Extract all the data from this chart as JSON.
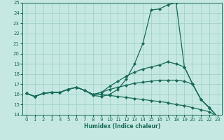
{
  "xlabel": "Humidex (Indice chaleur)",
  "ylabel": "",
  "xlim": [
    -0.5,
    23.5
  ],
  "ylim": [
    14,
    25
  ],
  "xticks": [
    0,
    1,
    2,
    3,
    4,
    5,
    6,
    7,
    8,
    9,
    10,
    11,
    12,
    13,
    14,
    15,
    16,
    17,
    18,
    19,
    20,
    21,
    22,
    23
  ],
  "yticks": [
    14,
    15,
    16,
    17,
    18,
    19,
    20,
    21,
    22,
    23,
    24,
    25
  ],
  "bg_color": "#c5e8e2",
  "grid_color": "#9ecec6",
  "line_color": "#1a6b5a",
  "lines": [
    [
      16.1,
      15.8,
      16.1,
      16.2,
      16.2,
      16.5,
      16.7,
      16.4,
      15.9,
      15.8,
      16.0,
      16.5,
      17.5,
      19.0,
      21.0,
      24.3,
      24.4,
      24.8,
      25.0,
      18.7,
      17.0,
      15.5,
      14.7,
      13.8
    ],
    [
      16.1,
      15.8,
      16.1,
      16.2,
      16.2,
      16.5,
      16.7,
      16.4,
      16.0,
      16.2,
      16.8,
      17.3,
      17.8,
      18.2,
      18.5,
      18.7,
      18.9,
      19.2,
      19.0,
      18.7,
      17.0,
      15.5,
      14.7,
      13.8
    ],
    [
      16.1,
      15.8,
      16.1,
      16.2,
      16.2,
      16.5,
      16.7,
      16.4,
      16.0,
      16.2,
      16.5,
      16.7,
      16.9,
      17.1,
      17.2,
      17.3,
      17.4,
      17.4,
      17.4,
      17.3,
      17.0,
      15.5,
      14.7,
      13.8
    ],
    [
      16.1,
      15.8,
      16.1,
      16.2,
      16.2,
      16.5,
      16.7,
      16.4,
      16.0,
      16.0,
      15.9,
      15.8,
      15.7,
      15.6,
      15.5,
      15.4,
      15.3,
      15.2,
      15.0,
      14.9,
      14.7,
      14.5,
      14.3,
      13.8
    ]
  ],
  "marker": "D",
  "markersize": 2.0,
  "linewidth": 0.9,
  "xlabel_fontsize": 5.5,
  "tick_fontsize": 5.0
}
